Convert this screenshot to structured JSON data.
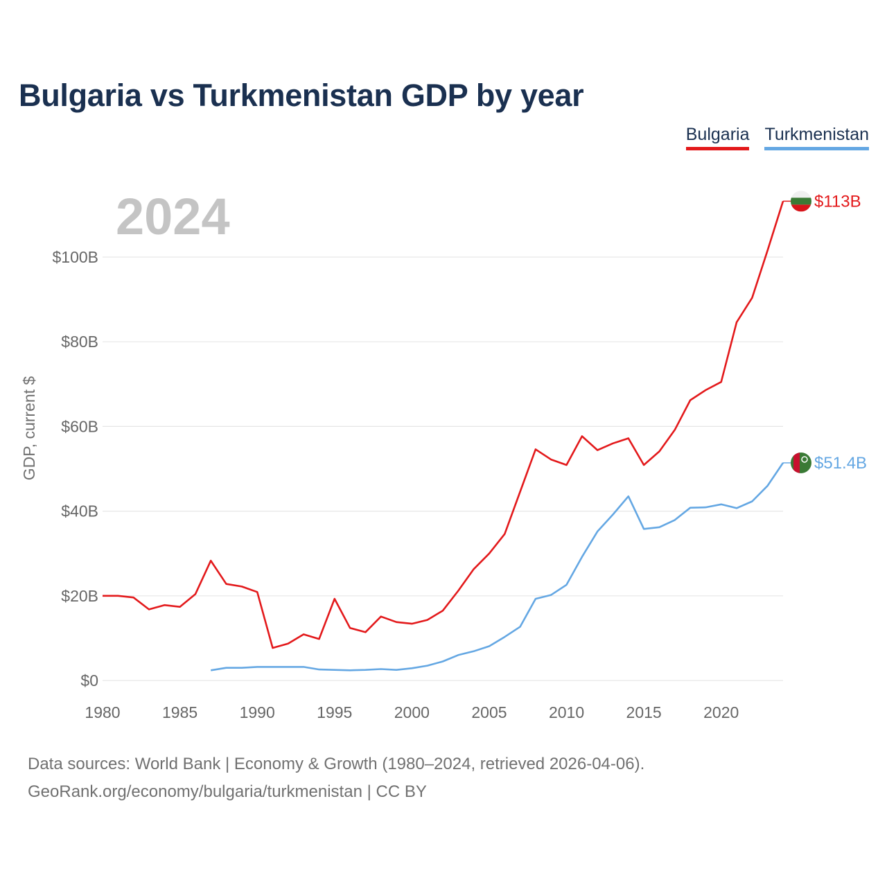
{
  "title": "Bulgaria vs Turkmenistan GDP by year",
  "legend": [
    {
      "name": "Bulgaria",
      "color": "#e3191b"
    },
    {
      "name": "Turkmenistan",
      "color": "#64a7e3"
    }
  ],
  "year_label": "2024",
  "footer": {
    "line1": "Data sources: World Bank | Economy & Growth (1980–2024, retrieved 2026-04-06).",
    "line2": "GeoRank.org/economy/bulgaria/turkmenistan | CC BY"
  },
  "flags": {
    "bulgaria": {
      "colors": [
        "#f0f0f0",
        "#3a7a35",
        "#d7141a"
      ]
    },
    "turkmenistan": {
      "colors": [
        "#3a7a35",
        "#c8102e",
        "#ffffff"
      ]
    }
  },
  "chart_data": {
    "type": "line",
    "title": "Bulgaria vs Turkmenistan GDP by year",
    "xlabel": "",
    "ylabel": "GDP, current $",
    "xlim": [
      1980,
      2024
    ],
    "ylim": [
      0,
      113
    ],
    "grid": true,
    "x_ticks": [
      1980,
      1985,
      1990,
      1995,
      2000,
      2005,
      2010,
      2015,
      2020
    ],
    "x_tick_labels": [
      "1980",
      "1985",
      "1990",
      "1995",
      "2000",
      "2005",
      "2010",
      "2015",
      "2020"
    ],
    "y_ticks": [
      0,
      20,
      40,
      60,
      80,
      100
    ],
    "y_tick_labels": [
      "$0",
      "$20B",
      "$40B",
      "$60B",
      "$80B",
      "$100B"
    ],
    "series": [
      {
        "name": "Bulgaria",
        "color": "#e3191b",
        "end_label": "$113B",
        "points": [
          [
            1980,
            20.0
          ],
          [
            1981,
            20.0
          ],
          [
            1982,
            19.6
          ],
          [
            1983,
            16.8
          ],
          [
            1984,
            17.8
          ],
          [
            1985,
            17.4
          ],
          [
            1986,
            20.4
          ],
          [
            1987,
            28.3
          ],
          [
            1988,
            22.8
          ],
          [
            1989,
            22.2
          ],
          [
            1990,
            20.9
          ],
          [
            1991,
            7.7
          ],
          [
            1992,
            8.7
          ],
          [
            1993,
            10.9
          ],
          [
            1994,
            9.8
          ],
          [
            1995,
            19.3
          ],
          [
            1996,
            12.4
          ],
          [
            1997,
            11.4
          ],
          [
            1998,
            15.1
          ],
          [
            1999,
            13.8
          ],
          [
            2000,
            13.4
          ],
          [
            2001,
            14.3
          ],
          [
            2002,
            16.5
          ],
          [
            2003,
            21.2
          ],
          [
            2004,
            26.3
          ],
          [
            2005,
            30.0
          ],
          [
            2006,
            34.6
          ],
          [
            2007,
            44.6
          ],
          [
            2008,
            54.6
          ],
          [
            2009,
            52.2
          ],
          [
            2010,
            50.9
          ],
          [
            2011,
            57.7
          ],
          [
            2012,
            54.4
          ],
          [
            2013,
            56.0
          ],
          [
            2014,
            57.2
          ],
          [
            2015,
            50.9
          ],
          [
            2016,
            54.1
          ],
          [
            2017,
            59.2
          ],
          [
            2018,
            66.2
          ],
          [
            2019,
            68.6
          ],
          [
            2020,
            70.5
          ],
          [
            2021,
            84.6
          ],
          [
            2022,
            90.4
          ],
          [
            2023,
            101.6
          ],
          [
            2024,
            113.2
          ]
        ]
      },
      {
        "name": "Turkmenistan",
        "color": "#64a7e3",
        "end_label": "$51.4B",
        "points": [
          [
            1987,
            2.4
          ],
          [
            1988,
            3.0
          ],
          [
            1989,
            3.0
          ],
          [
            1990,
            3.2
          ],
          [
            1991,
            3.2
          ],
          [
            1992,
            3.2
          ],
          [
            1993,
            3.2
          ],
          [
            1994,
            2.6
          ],
          [
            1995,
            2.5
          ],
          [
            1996,
            2.4
          ],
          [
            1997,
            2.5
          ],
          [
            1998,
            2.7
          ],
          [
            1999,
            2.5
          ],
          [
            2000,
            2.9
          ],
          [
            2001,
            3.5
          ],
          [
            2002,
            4.5
          ],
          [
            2003,
            6.0
          ],
          [
            2004,
            6.9
          ],
          [
            2005,
            8.1
          ],
          [
            2006,
            10.3
          ],
          [
            2007,
            12.7
          ],
          [
            2008,
            19.3
          ],
          [
            2009,
            20.2
          ],
          [
            2010,
            22.6
          ],
          [
            2011,
            29.2
          ],
          [
            2012,
            35.2
          ],
          [
            2013,
            39.2
          ],
          [
            2014,
            43.5
          ],
          [
            2015,
            35.8
          ],
          [
            2016,
            36.2
          ],
          [
            2017,
            37.9
          ],
          [
            2018,
            40.8
          ],
          [
            2019,
            40.9
          ],
          [
            2020,
            41.6
          ],
          [
            2021,
            40.7
          ],
          [
            2022,
            42.3
          ],
          [
            2023,
            46.0
          ],
          [
            2024,
            51.4
          ]
        ]
      }
    ]
  }
}
